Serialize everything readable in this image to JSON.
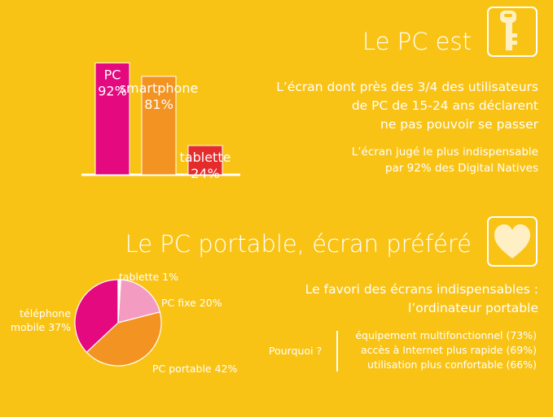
{
  "section1": {
    "title": "Le PC est",
    "description": "L’écran dont près des 3/4 des utilisateurs\nde PC de 15-24 ans déclarent\nne pas pouvoir se passer",
    "subdescription": "L’écran jugé le plus indispensable\npar 92% des Digital Natives"
  },
  "section2": {
    "title": "Le PC portable, écran préféré",
    "fav_title": "Le favori des écrans indispensables :\nl’ordinateur portable",
    "why_label": "Pourquoi ?",
    "reasons": "équipement multifonctionnel (73%)\naccès à Internet plus rapide (69%)\nutilisation plus confortable (66%)"
  },
  "icons": {
    "key": "key-icon",
    "heart": "heart-icon"
  },
  "chart_data": [
    {
      "type": "bar",
      "categories": [
        "PC",
        "smartphone",
        "tablette"
      ],
      "values": [
        92,
        81,
        24
      ],
      "value_labels": [
        "92%",
        "81%",
        "24%"
      ],
      "colors": [
        "#E5097F",
        "#F39422",
        "#E42C2C"
      ],
      "ylim": [
        0,
        100
      ],
      "title": "",
      "xlabel": "",
      "ylabel": ""
    },
    {
      "type": "pie",
      "labels": [
        "PC fixe",
        "PC portable",
        "téléphone mobile",
        "tablette"
      ],
      "values": [
        20,
        42,
        37,
        1
      ],
      "value_labels": [
        "20%",
        "42%",
        "37%",
        "1%"
      ],
      "colors": [
        "#F49BC2",
        "#F39422",
        "#E5097F",
        "#FFFFFF"
      ],
      "title": ""
    }
  ]
}
